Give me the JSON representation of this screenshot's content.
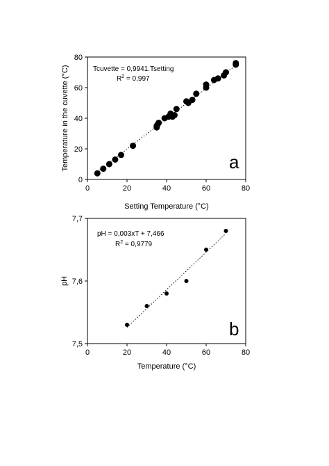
{
  "chart_data": [
    {
      "type": "scatter",
      "panel_label": "a",
      "xlabel": "Setting Temperature (°C)",
      "ylabel": "Temperature in the cuvette (°C)",
      "xlim": [
        0,
        80
      ],
      "ylim": [
        0,
        80
      ],
      "xticks": [
        "0",
        "20",
        "40",
        "60",
        "80"
      ],
      "yticks": [
        "0",
        "20",
        "40",
        "60",
        "80"
      ],
      "equation": "Tcuvette = 0,9941.Tsetting",
      "r2_prefix": "R",
      "r2_sup": "2",
      "r2_value": " = 0,997",
      "grid": false,
      "trendline": {
        "style": "dotted",
        "slope": 0.9941,
        "intercept": 0,
        "x_range": [
          5,
          75
        ]
      },
      "series": [
        {
          "x": [
            5,
            8,
            11,
            14,
            17,
            23,
            35,
            35,
            35.5,
            36,
            39,
            41,
            42,
            43,
            44,
            45,
            50,
            51,
            53,
            55,
            60,
            60,
            64,
            66,
            69,
            70,
            75,
            75
          ],
          "y": [
            4,
            7,
            10,
            13,
            16,
            22,
            34,
            35,
            36,
            37,
            40,
            41,
            43,
            41,
            42,
            46,
            51,
            50,
            52,
            56,
            60,
            62,
            65,
            66,
            68,
            70,
            75,
            76
          ]
        }
      ]
    },
    {
      "type": "scatter",
      "panel_label": "b",
      "xlabel": "Temperature (°C)",
      "ylabel": "pH",
      "xlim": [
        0,
        80
      ],
      "ylim": [
        7.5,
        7.7
      ],
      "xticks": [
        "0",
        "20",
        "40",
        "60",
        "80"
      ],
      "yticks": [
        "7,5",
        "7,6",
        "7,7"
      ],
      "equation": "pH = 0,003xT + 7,466",
      "r2_prefix": "R",
      "r2_sup": "2",
      "r2_value": " = 0,9779",
      "grid": false,
      "trendline": {
        "style": "dotted",
        "slope": 0.003,
        "intercept": 7.466,
        "x_range": [
          20,
          70
        ]
      },
      "series": [
        {
          "x": [
            20,
            30,
            40,
            50,
            60,
            70
          ],
          "y": [
            7.53,
            7.56,
            7.58,
            7.6,
            7.65,
            7.68
          ]
        }
      ]
    }
  ]
}
